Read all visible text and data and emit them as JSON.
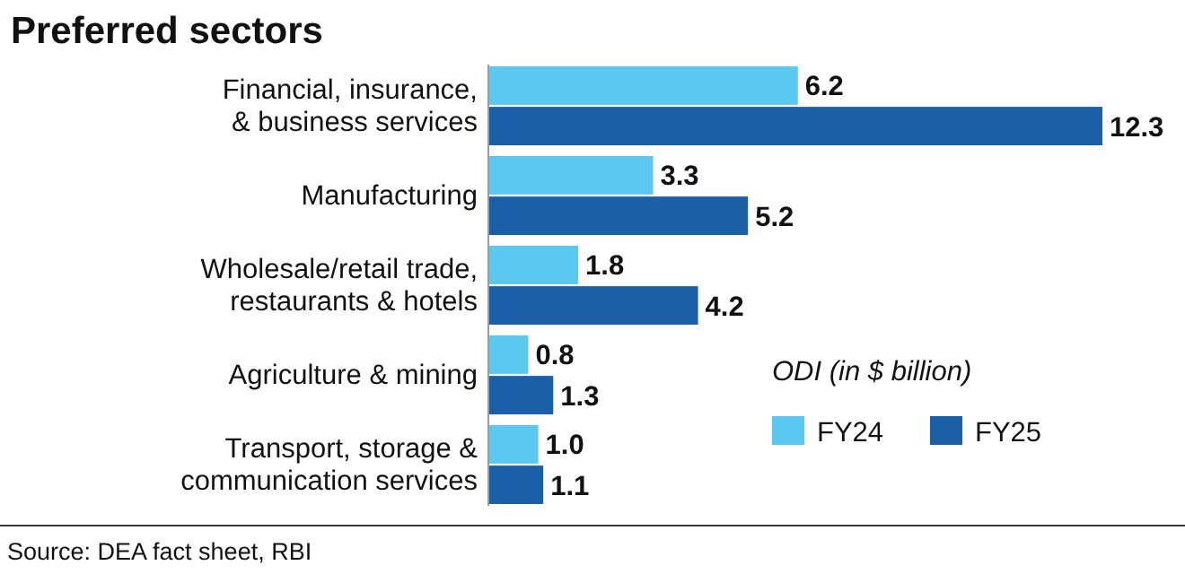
{
  "chart_data": {
    "type": "bar",
    "orientation": "horizontal",
    "title": "Preferred sectors",
    "categories": [
      "Financial, insurance,\n& business services",
      "Manufacturing",
      "Wholesale/retail trade,\nrestaurants & hotels",
      "Agriculture & mining",
      "Transport, storage &\ncommunication services"
    ],
    "series": [
      {
        "name": "FY24",
        "color": "#5bc8f0",
        "values": [
          6.2,
          3.3,
          1.8,
          0.8,
          1.0
        ],
        "value_labels": [
          "6.2",
          "3.3",
          "1.8",
          "0.8",
          "1.0"
        ]
      },
      {
        "name": "FY25",
        "color": "#1a5fa8",
        "values": [
          12.3,
          5.2,
          4.2,
          1.3,
          1.1
        ],
        "value_labels": [
          "12.3",
          "5.2",
          "4.2",
          "1.3",
          "1.1"
        ]
      }
    ],
    "legend": "bottom right",
    "legend_title": "ODI (in $ billion)",
    "annotations": [
      "Source: DEA fact sheet, RBI"
    ]
  }
}
